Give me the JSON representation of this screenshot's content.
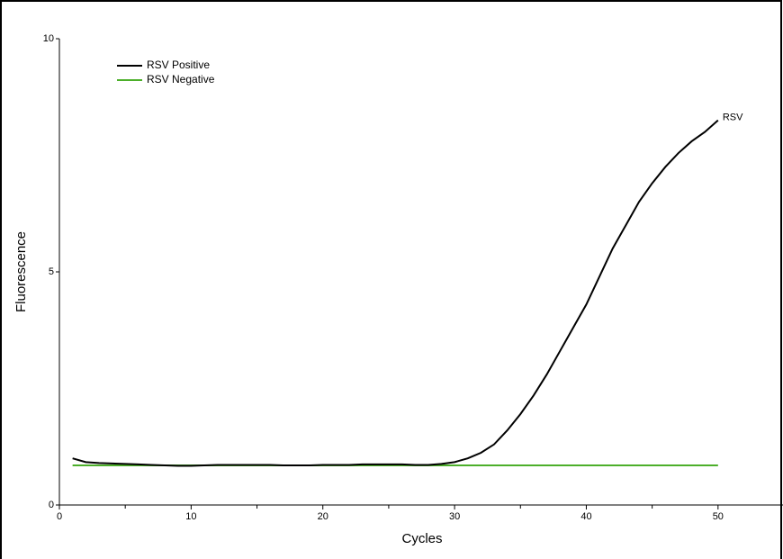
{
  "chart_data": {
    "type": "line",
    "x_label": "Cycles",
    "y_label": "Fluorescence",
    "x": [
      1,
      2,
      3,
      4,
      5,
      6,
      7,
      8,
      9,
      10,
      11,
      12,
      13,
      14,
      15,
      16,
      17,
      18,
      19,
      20,
      21,
      22,
      23,
      24,
      25,
      26,
      27,
      28,
      29,
      30,
      31,
      32,
      33,
      34,
      35,
      36,
      37,
      38,
      39,
      40,
      41,
      42,
      43,
      44,
      45,
      46,
      47,
      48,
      49,
      50
    ],
    "series": [
      {
        "name": "RSV Positive",
        "color": "#000000",
        "values": [
          1.0,
          0.92,
          0.9,
          0.89,
          0.88,
          0.87,
          0.86,
          0.85,
          0.84,
          0.84,
          0.85,
          0.86,
          0.86,
          0.86,
          0.86,
          0.86,
          0.85,
          0.85,
          0.85,
          0.86,
          0.86,
          0.86,
          0.87,
          0.87,
          0.87,
          0.87,
          0.86,
          0.86,
          0.88,
          0.92,
          1.0,
          1.12,
          1.3,
          1.6,
          1.95,
          2.35,
          2.8,
          3.3,
          3.8,
          4.3,
          4.9,
          5.5,
          6.0,
          6.5,
          6.9,
          7.25,
          7.55,
          7.8,
          8.0,
          8.25
        ]
      },
      {
        "name": "RSV Negative",
        "color": "#4caf2a",
        "values": [
          0.85,
          0.85,
          0.85,
          0.85,
          0.85,
          0.85,
          0.85,
          0.85,
          0.85,
          0.85,
          0.85,
          0.85,
          0.85,
          0.85,
          0.85,
          0.85,
          0.85,
          0.85,
          0.85,
          0.85,
          0.85,
          0.85,
          0.85,
          0.85,
          0.85,
          0.85,
          0.85,
          0.85,
          0.85,
          0.85,
          0.85,
          0.85,
          0.85,
          0.85,
          0.85,
          0.85,
          0.85,
          0.85,
          0.85,
          0.85,
          0.85,
          0.85,
          0.85,
          0.85,
          0.85,
          0.85,
          0.85,
          0.85,
          0.85,
          0.85
        ]
      }
    ],
    "annotation": "RSV",
    "xlim": [
      0,
      55
    ],
    "xticks": [
      0,
      10,
      20,
      30,
      40,
      50
    ],
    "x_minor_ticks": [
      5,
      15,
      25,
      35,
      45
    ],
    "ylim": [
      0,
      10
    ],
    "yticks": [
      0,
      5,
      10
    ],
    "grid": false,
    "legend": "top-left"
  }
}
